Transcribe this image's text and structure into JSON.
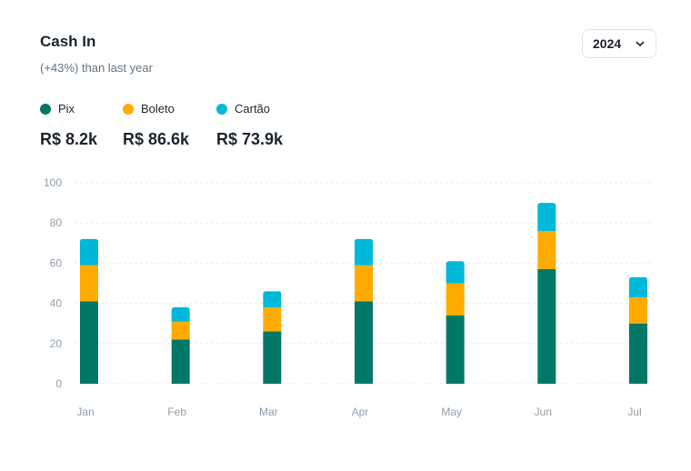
{
  "header": {
    "title": "Cash In",
    "subtitle": "(+43%) than last year",
    "year": "2024"
  },
  "colors": {
    "pix": "#007867",
    "boleto": "#ffab00",
    "cartao": "#00b8d9",
    "grid": "#e9ecee",
    "tick": "#919eab"
  },
  "legend": [
    {
      "label": "Pix",
      "total": "R$ 8.2k",
      "color": "#007867"
    },
    {
      "label": "Boleto",
      "total": "R$ 86.6k",
      "color": "#ffab00"
    },
    {
      "label": "Cartão",
      "total": "R$ 73.9k",
      "color": "#00b8d9"
    }
  ],
  "chart_data": {
    "type": "bar",
    "stacked": true,
    "categories": [
      "Jan",
      "Feb",
      "Mar",
      "Apr",
      "May",
      "Jun",
      "Jul"
    ],
    "series": [
      {
        "name": "Pix",
        "values": [
          41,
          22,
          26,
          41,
          34,
          57,
          30
        ]
      },
      {
        "name": "Boleto",
        "values": [
          18,
          9,
          12,
          18,
          16,
          19,
          13
        ]
      },
      {
        "name": "Cartão",
        "values": [
          13,
          7,
          8,
          13,
          11,
          14,
          10
        ]
      }
    ],
    "ylim": [
      0,
      100
    ],
    "yticks": [
      0,
      20,
      40,
      60,
      80,
      100
    ],
    "grid": true,
    "legend_position": "top-left"
  }
}
